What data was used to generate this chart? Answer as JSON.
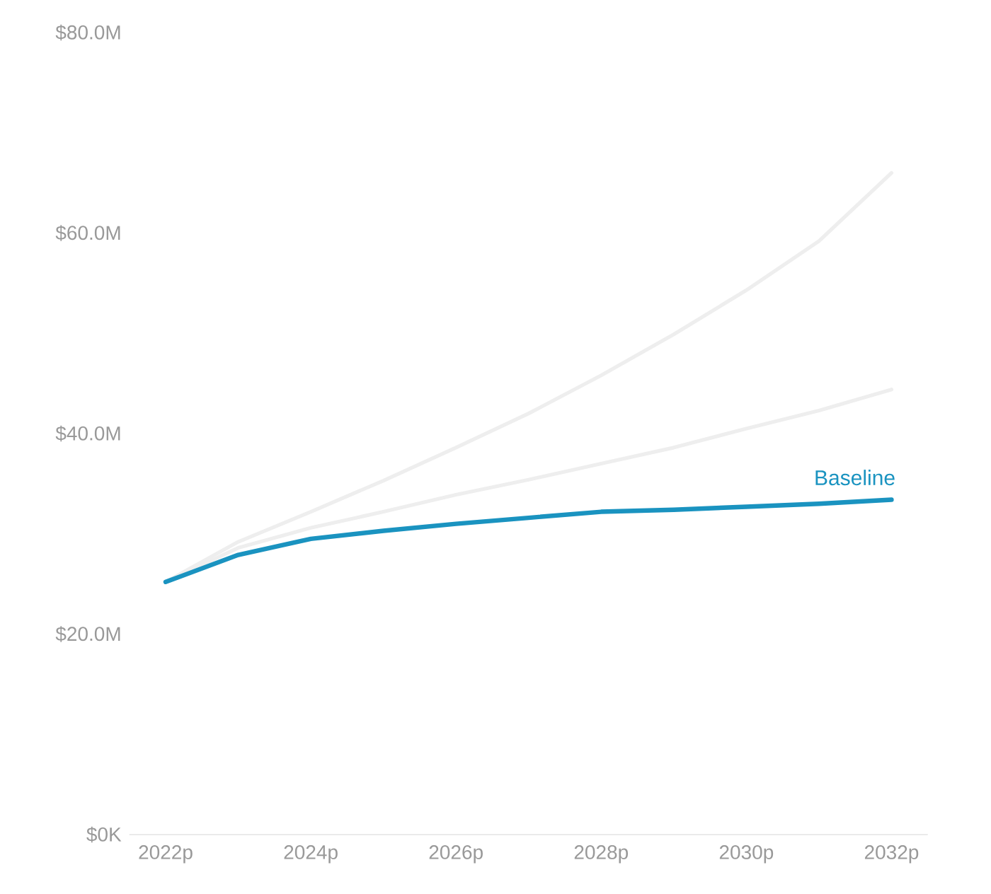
{
  "chart_data": {
    "type": "line",
    "categories": [
      "2022p",
      null,
      "2024p",
      null,
      "2026p",
      null,
      "2028p",
      null,
      "2030p",
      null,
      "2032p"
    ],
    "ylim": [
      0,
      80
    ],
    "yticks": [
      {
        "value": 0,
        "label": "$0K"
      },
      {
        "value": 20,
        "label": "$20.0M"
      },
      {
        "value": 40,
        "label": "$40.0M"
      },
      {
        "value": 60,
        "label": "$60.0M"
      },
      {
        "value": 80,
        "label": "$80.0M"
      }
    ],
    "grid": false,
    "marker": "none",
    "line_style": "solid",
    "series": [
      {
        "color": "#eeeeee",
        "values": [
          25.2,
          29.2,
          32.2,
          35.3,
          38.6,
          42.0,
          45.8,
          49.9,
          54.3,
          59.2,
          66.0
        ]
      },
      {
        "color": "#eeeeee",
        "values": [
          25.2,
          28.6,
          30.6,
          32.2,
          33.9,
          35.4,
          37.0,
          38.6,
          40.5,
          42.3,
          44.4
        ]
      },
      {
        "name": "Baseline",
        "color": "#1a93c0",
        "values": [
          25.2,
          27.9,
          29.5,
          30.3,
          31.0,
          31.6,
          32.2,
          32.4,
          32.7,
          33.0,
          33.4
        ]
      }
    ]
  }
}
